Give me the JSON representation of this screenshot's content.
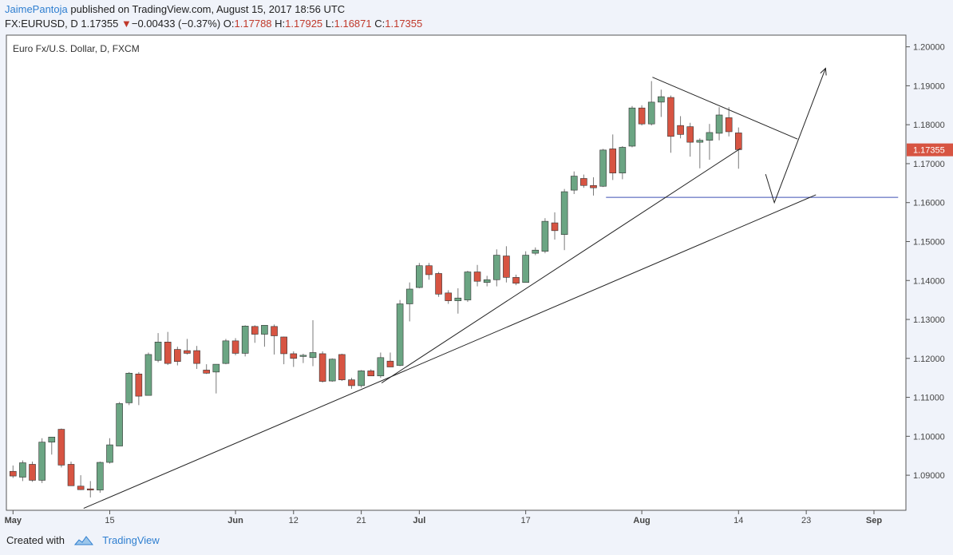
{
  "header": {
    "author": "JaimePantoja",
    "published_text": "published on TradingView.com, August 15, 2017 18:56 UTC",
    "symbol": "FX:EURUSD, D",
    "last": "1.17355",
    "change_arrow": "▼",
    "change": "−0.00433 (−0.37%)",
    "o_label": "O:",
    "o_value": "1.17788",
    "h_label": "H:",
    "h_value": "1.17925",
    "l_label": "L:",
    "l_value": "1.16871",
    "c_label": "C:",
    "c_value": "1.17355"
  },
  "footer": {
    "created_with": "Created with",
    "brand": "TradingView"
  },
  "colors": {
    "up": "#6ba583",
    "down": "#d75442",
    "wick": "#7a7a7a",
    "line": "#222222",
    "support": "#3f51b5",
    "price_label_bg": "#d75442"
  },
  "chart_data": {
    "type": "candlestick",
    "title": "Euro Fx/U.S. Dollar, D, FXCM",
    "ylim": [
      1.081,
      1.203
    ],
    "y_ticks": [
      "1.09000",
      "1.10000",
      "1.11000",
      "1.12000",
      "1.13000",
      "1.14000",
      "1.15000",
      "1.16000",
      "1.17000",
      "1.18000",
      "1.19000",
      "1.20000"
    ],
    "x_ticks": [
      {
        "label": "May",
        "index": 0
      },
      {
        "label": "15",
        "index": 10
      },
      {
        "label": "Jun",
        "index": 23
      },
      {
        "label": "12",
        "index": 29
      },
      {
        "label": "21",
        "index": 36
      },
      {
        "label": "Jul",
        "index": 42
      },
      {
        "label": "17",
        "index": 53
      },
      {
        "label": "Aug",
        "index": 65
      },
      {
        "label": "14",
        "index": 75
      },
      {
        "label": "23",
        "index": 82
      },
      {
        "label": "Sep",
        "index": 89
      }
    ],
    "last_price_label": "1.17355",
    "last_price": 1.17355,
    "candles": [
      {
        "o": 1.091,
        "h": 1.0925,
        "l": 1.0893,
        "c": 1.0898
      },
      {
        "o": 1.0895,
        "h": 1.0938,
        "l": 1.0885,
        "c": 1.0932
      },
      {
        "o": 1.0928,
        "h": 1.0935,
        "l": 1.0883,
        "c": 1.0887
      },
      {
        "o": 1.0887,
        "h": 1.0995,
        "l": 1.088,
        "c": 1.0985
      },
      {
        "o": 1.0985,
        "h": 1.0998,
        "l": 1.0953,
        "c": 1.0998
      },
      {
        "o": 1.1018,
        "h": 1.102,
        "l": 1.092,
        "c": 1.0926
      },
      {
        "o": 1.0928,
        "h": 1.0935,
        "l": 1.088,
        "c": 1.0873
      },
      {
        "o": 1.0872,
        "h": 1.09,
        "l": 1.0862,
        "c": 1.0863
      },
      {
        "o": 1.0865,
        "h": 1.0885,
        "l": 1.0843,
        "c": 1.0862
      },
      {
        "o": 1.0862,
        "h": 1.0935,
        "l": 1.0855,
        "c": 1.0933
      },
      {
        "o": 1.0933,
        "h": 1.0995,
        "l": 1.093,
        "c": 1.0978
      },
      {
        "o": 1.0975,
        "h": 1.1088,
        "l": 1.0975,
        "c": 1.1084
      },
      {
        "o": 1.1086,
        "h": 1.1165,
        "l": 1.108,
        "c": 1.1162
      },
      {
        "o": 1.116,
        "h": 1.1165,
        "l": 1.108,
        "c": 1.1103
      },
      {
        "o": 1.1105,
        "h": 1.1215,
        "l": 1.1105,
        "c": 1.121
      },
      {
        "o": 1.1195,
        "h": 1.1265,
        "l": 1.119,
        "c": 1.1242
      },
      {
        "o": 1.1242,
        "h": 1.1268,
        "l": 1.1183,
        "c": 1.1187
      },
      {
        "o": 1.1223,
        "h": 1.123,
        "l": 1.1182,
        "c": 1.1192
      },
      {
        "o": 1.122,
        "h": 1.125,
        "l": 1.121,
        "c": 1.1213
      },
      {
        "o": 1.122,
        "h": 1.1232,
        "l": 1.1173,
        "c": 1.1187
      },
      {
        "o": 1.117,
        "h": 1.1185,
        "l": 1.116,
        "c": 1.1162
      },
      {
        "o": 1.1165,
        "h": 1.1185,
        "l": 1.111,
        "c": 1.1185
      },
      {
        "o": 1.1187,
        "h": 1.125,
        "l": 1.1185,
        "c": 1.1245
      },
      {
        "o": 1.1245,
        "h": 1.1252,
        "l": 1.1208,
        "c": 1.1213
      },
      {
        "o": 1.1213,
        "h": 1.1285,
        "l": 1.1205,
        "c": 1.1283
      },
      {
        "o": 1.1282,
        "h": 1.1285,
        "l": 1.124,
        "c": 1.1262
      },
      {
        "o": 1.1262,
        "h": 1.1285,
        "l": 1.123,
        "c": 1.1285
      },
      {
        "o": 1.1282,
        "h": 1.1287,
        "l": 1.121,
        "c": 1.1258
      },
      {
        "o": 1.1255,
        "h": 1.1256,
        "l": 1.1185,
        "c": 1.1212
      },
      {
        "o": 1.1212,
        "h": 1.1218,
        "l": 1.1178,
        "c": 1.12
      },
      {
        "o": 1.1205,
        "h": 1.1212,
        "l": 1.1188,
        "c": 1.1208
      },
      {
        "o": 1.1202,
        "h": 1.1298,
        "l": 1.118,
        "c": 1.1215
      },
      {
        "o": 1.1212,
        "h": 1.1218,
        "l": 1.1138,
        "c": 1.1141
      },
      {
        "o": 1.1142,
        "h": 1.12,
        "l": 1.114,
        "c": 1.1198
      },
      {
        "o": 1.121,
        "h": 1.1212,
        "l": 1.1142,
        "c": 1.1145
      },
      {
        "o": 1.1145,
        "h": 1.115,
        "l": 1.1122,
        "c": 1.113
      },
      {
        "o": 1.113,
        "h": 1.117,
        "l": 1.1125,
        "c": 1.1168
      },
      {
        "o": 1.1168,
        "h": 1.1172,
        "l": 1.1155,
        "c": 1.1155
      },
      {
        "o": 1.1155,
        "h": 1.1215,
        "l": 1.115,
        "c": 1.1202
      },
      {
        "o": 1.1193,
        "h": 1.1215,
        "l": 1.119,
        "c": 1.1178
      },
      {
        "o": 1.1182,
        "h": 1.135,
        "l": 1.118,
        "c": 1.134
      },
      {
        "o": 1.134,
        "h": 1.1395,
        "l": 1.1295,
        "c": 1.1378
      },
      {
        "o": 1.1382,
        "h": 1.1445,
        "l": 1.138,
        "c": 1.1438
      },
      {
        "o": 1.1438,
        "h": 1.1445,
        "l": 1.1402,
        "c": 1.1415
      },
      {
        "o": 1.1418,
        "h": 1.1422,
        "l": 1.1358,
        "c": 1.1365
      },
      {
        "o": 1.1368,
        "h": 1.1375,
        "l": 1.134,
        "c": 1.1348
      },
      {
        "o": 1.1348,
        "h": 1.138,
        "l": 1.1315,
        "c": 1.1355
      },
      {
        "o": 1.135,
        "h": 1.1425,
        "l": 1.1345,
        "c": 1.1422
      },
      {
        "o": 1.1422,
        "h": 1.144,
        "l": 1.1385,
        "c": 1.1398
      },
      {
        "o": 1.1395,
        "h": 1.1412,
        "l": 1.1385,
        "c": 1.1402
      },
      {
        "o": 1.1402,
        "h": 1.148,
        "l": 1.1385,
        "c": 1.1465
      },
      {
        "o": 1.1463,
        "h": 1.1488,
        "l": 1.1395,
        "c": 1.1408
      },
      {
        "o": 1.1408,
        "h": 1.1415,
        "l": 1.1388,
        "c": 1.1393
      },
      {
        "o": 1.1395,
        "h": 1.1475,
        "l": 1.1395,
        "c": 1.1465
      },
      {
        "o": 1.147,
        "h": 1.1485,
        "l": 1.1465,
        "c": 1.1478
      },
      {
        "o": 1.1475,
        "h": 1.156,
        "l": 1.147,
        "c": 1.1552
      },
      {
        "o": 1.1548,
        "h": 1.1575,
        "l": 1.1505,
        "c": 1.1528
      },
      {
        "o": 1.1518,
        "h": 1.1635,
        "l": 1.1478,
        "c": 1.1628
      },
      {
        "o": 1.1632,
        "h": 1.168,
        "l": 1.1622,
        "c": 1.1668
      },
      {
        "o": 1.1662,
        "h": 1.1672,
        "l": 1.1638,
        "c": 1.1644
      },
      {
        "o": 1.1644,
        "h": 1.1665,
        "l": 1.1618,
        "c": 1.1638
      },
      {
        "o": 1.1642,
        "h": 1.1738,
        "l": 1.164,
        "c": 1.1735
      },
      {
        "o": 1.1738,
        "h": 1.1775,
        "l": 1.1658,
        "c": 1.1676
      },
      {
        "o": 1.1676,
        "h": 1.1745,
        "l": 1.166,
        "c": 1.1742
      },
      {
        "o": 1.1745,
        "h": 1.1848,
        "l": 1.1742,
        "c": 1.1843
      },
      {
        "o": 1.1843,
        "h": 1.185,
        "l": 1.1798,
        "c": 1.1802
      },
      {
        "o": 1.1802,
        "h": 1.1912,
        "l": 1.1798,
        "c": 1.1858
      },
      {
        "o": 1.1858,
        "h": 1.189,
        "l": 1.182,
        "c": 1.1872
      },
      {
        "o": 1.187,
        "h": 1.1875,
        "l": 1.1728,
        "c": 1.177
      },
      {
        "o": 1.1798,
        "h": 1.1822,
        "l": 1.1765,
        "c": 1.1775
      },
      {
        "o": 1.1795,
        "h": 1.1805,
        "l": 1.1718,
        "c": 1.1755
      },
      {
        "o": 1.1755,
        "h": 1.1765,
        "l": 1.1688,
        "c": 1.176
      },
      {
        "o": 1.176,
        "h": 1.1802,
        "l": 1.171,
        "c": 1.178
      },
      {
        "o": 1.1778,
        "h": 1.1845,
        "l": 1.176,
        "c": 1.1825
      },
      {
        "o": 1.1818,
        "h": 1.1845,
        "l": 1.177,
        "c": 1.1782
      },
      {
        "o": 1.1779,
        "h": 1.1793,
        "l": 1.1687,
        "c": 1.1736
      }
    ],
    "trendlines": [
      {
        "name": "long-trendline",
        "from": {
          "index": 7.3,
          "price": 1.0815
        },
        "to": {
          "index": 83.0,
          "price": 1.162
        }
      },
      {
        "name": "short-trendline",
        "from": {
          "index": 38.1,
          "price": 1.1137
        },
        "to": {
          "index": 75.2,
          "price": 1.1739
        }
      },
      {
        "name": "resistance-trendline",
        "from": {
          "index": 66.1,
          "price": 1.1922
        },
        "to": {
          "index": 81.1,
          "price": 1.1763
        }
      }
    ],
    "support_line": {
      "price": 1.16135,
      "from_index": 61.3,
      "to_index": 91.5
    },
    "projection_path": [
      {
        "index": 77.8,
        "price": 1.1673
      },
      {
        "index": 78.7,
        "price": 1.16
      },
      {
        "index": 84.0,
        "price": 1.1945
      }
    ]
  }
}
